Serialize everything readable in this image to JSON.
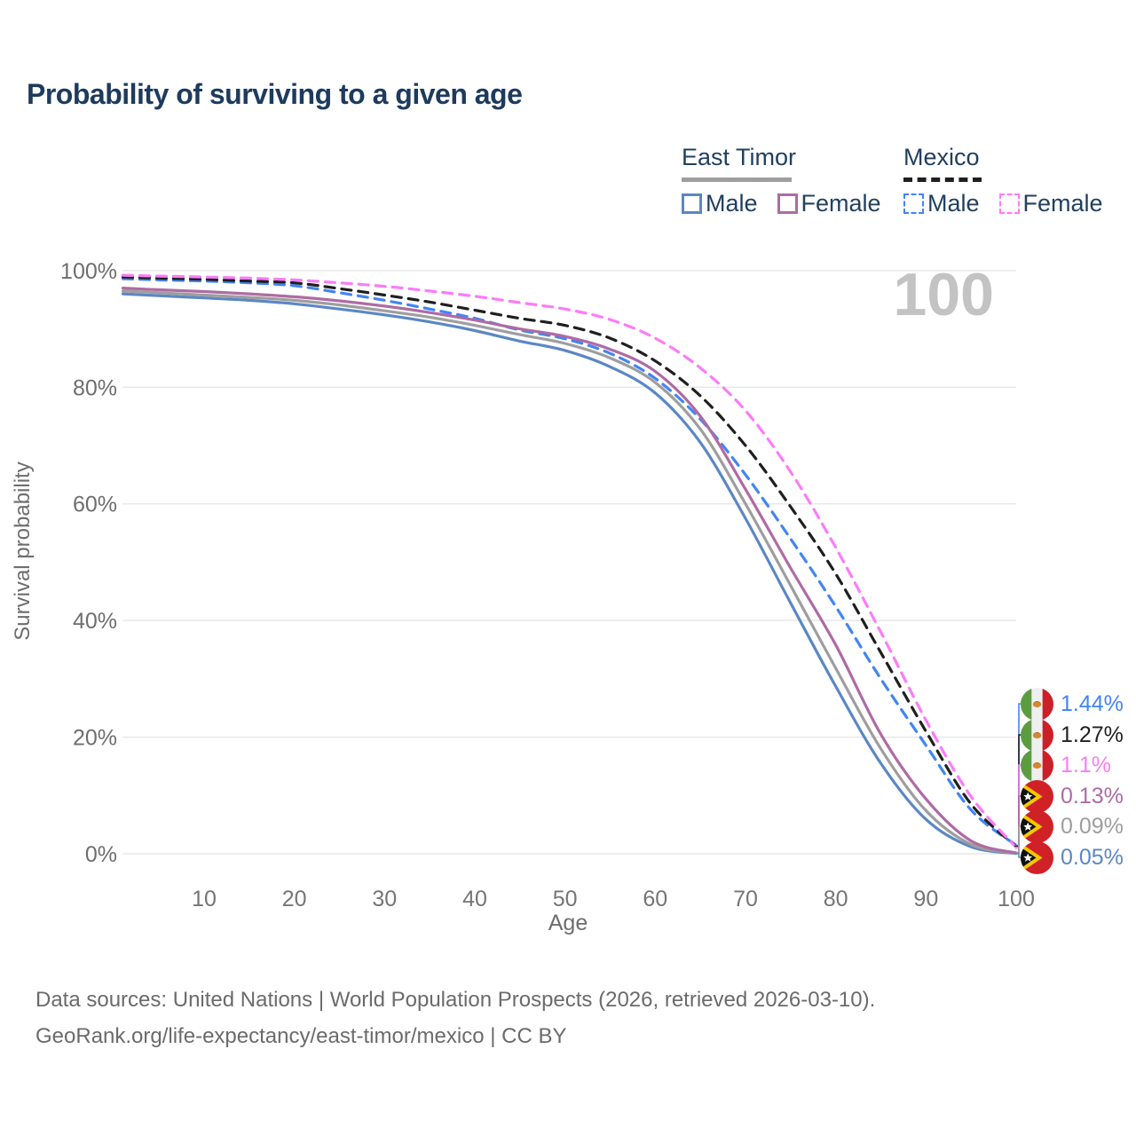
{
  "title": "Probability of surviving to a given age",
  "age_counter": "100",
  "legend": {
    "groups": [
      {
        "name": "East Timor",
        "line_style": "solid",
        "underline_color": "#9e9e9e",
        "items": [
          {
            "label": "Male",
            "color": "#5b87c5"
          },
          {
            "label": "Female",
            "color": "#ae6ba4"
          }
        ]
      },
      {
        "name": "Mexico",
        "line_style": "dashed",
        "underline_color": "#1f1f1f",
        "items": [
          {
            "label": "Male",
            "color": "#4285f4"
          },
          {
            "label": "Female",
            "color": "#fb7cf8"
          }
        ]
      }
    ]
  },
  "chart_data": {
    "type": "line",
    "title": "Probability of surviving to a given age",
    "xlabel": "Age",
    "ylabel": "Survival probability",
    "xlim": [
      0,
      100
    ],
    "ylim": [
      0,
      100
    ],
    "grid": "horizontal",
    "x_ticks": [
      10,
      20,
      30,
      40,
      50,
      60,
      70,
      80,
      90,
      100
    ],
    "y_ticks": [
      0,
      20,
      40,
      60,
      80,
      100
    ],
    "y_tick_suffix": "%",
    "x": [
      1,
      5,
      10,
      15,
      20,
      25,
      30,
      35,
      40,
      45,
      50,
      55,
      60,
      65,
      70,
      75,
      80,
      85,
      90,
      95,
      100
    ],
    "series": [
      {
        "name": "East Timor Male",
        "country": "East Timor",
        "sex": "male",
        "color": "#5b87c5",
        "dash": "solid",
        "end_label": "0.05%",
        "values": [
          96.0,
          95.7,
          95.3,
          94.9,
          94.3,
          93.4,
          92.4,
          91.2,
          89.7,
          87.9,
          86.3,
          83.5,
          79.0,
          70.5,
          57.5,
          43.0,
          28.7,
          15.5,
          5.9,
          1.2,
          0.05
        ]
      },
      {
        "name": "East Timor Both sexes",
        "country": "East Timor",
        "sex": "all",
        "color": "#9e9e9e",
        "dash": "solid",
        "end_label": "0.09%",
        "values": [
          96.5,
          96.2,
          95.8,
          95.4,
          94.9,
          94.1,
          93.1,
          92.0,
          90.6,
          89.0,
          87.5,
          85.0,
          80.8,
          72.8,
          60.0,
          46.0,
          31.8,
          18.0,
          7.4,
          1.6,
          0.09
        ]
      },
      {
        "name": "East Timor Female",
        "country": "East Timor",
        "sex": "female",
        "color": "#ae6ba4",
        "dash": "solid",
        "end_label": "0.13%",
        "values": [
          97.0,
          96.7,
          96.4,
          96.0,
          95.5,
          94.8,
          93.9,
          92.8,
          91.5,
          90.0,
          88.7,
          86.5,
          82.7,
          75.0,
          62.5,
          49.0,
          35.8,
          20.5,
          9.4,
          2.2,
          0.13
        ]
      },
      {
        "name": "Mexico Male",
        "country": "Mexico",
        "sex": "male",
        "color": "#4285f4",
        "dash": "dashed",
        "end_label": "1.44%",
        "values": [
          98.6,
          98.4,
          98.2,
          97.9,
          97.4,
          96.2,
          94.9,
          93.4,
          91.8,
          89.8,
          88.3,
          85.8,
          81.5,
          74.5,
          65.0,
          54.0,
          42.4,
          30.0,
          18.6,
          7.5,
          1.44
        ]
      },
      {
        "name": "Mexico Both sexes",
        "country": "Mexico",
        "sex": "all",
        "color": "#1f1f1f",
        "dash": "dashed",
        "end_label": "1.27%",
        "values": [
          98.9,
          98.7,
          98.5,
          98.2,
          97.9,
          96.9,
          95.8,
          94.6,
          93.2,
          91.8,
          90.6,
          88.4,
          84.5,
          78.5,
          70.0,
          59.5,
          48.0,
          34.5,
          21.0,
          8.5,
          1.27
        ]
      },
      {
        "name": "Mexico Female",
        "country": "Mexico",
        "sex": "female",
        "color": "#fb7cf8",
        "dash": "dashed",
        "end_label": "1.1%",
        "values": [
          99.2,
          99.05,
          98.9,
          98.7,
          98.4,
          97.9,
          97.3,
          96.5,
          95.6,
          94.5,
          93.4,
          91.6,
          88.4,
          83.3,
          76.0,
          65.5,
          52.5,
          38.0,
          22.9,
          9.8,
          1.1
        ]
      }
    ]
  },
  "end_labels": [
    {
      "flag": "mexico",
      "value": "1.44%",
      "color": "#4285f4",
      "series_index": 3
    },
    {
      "flag": "mexico",
      "value": "1.27%",
      "color": "#1f1f1f",
      "series_index": 4
    },
    {
      "flag": "mexico",
      "value": "1.1%",
      "color": "#fb7cf8",
      "series_index": 5
    },
    {
      "flag": "east-timor",
      "value": "0.13%",
      "color": "#ae6ba4",
      "series_index": 2
    },
    {
      "flag": "east-timor",
      "value": "0.09%",
      "color": "#9e9e9e",
      "series_index": 1
    },
    {
      "flag": "east-timor",
      "value": "0.05%",
      "color": "#5b87c5",
      "series_index": 0
    }
  ],
  "footer": {
    "line1": "Data sources: United Nations | World Population Prospects (2026, retrieved 2026-03-10).",
    "line2": "GeoRank.org/life-expectancy/east-timor/mexico | CC BY"
  }
}
